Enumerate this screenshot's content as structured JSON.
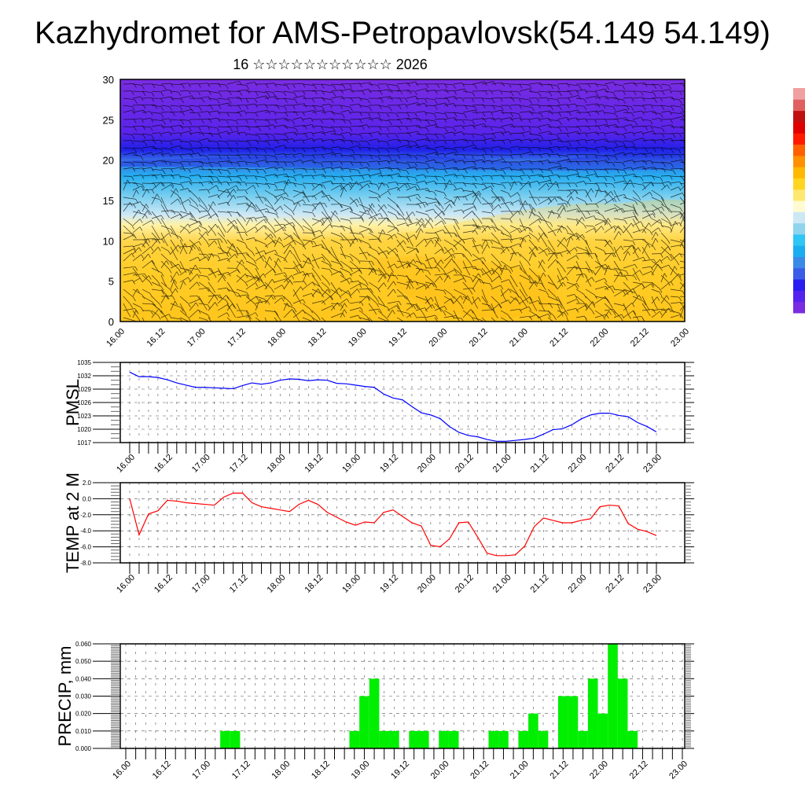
{
  "page": {
    "title": "Kazhydromet for AMS-Petropavlovsk(54.149 54.149)",
    "subtitle": "16 ☆☆☆☆☆☆☆☆☆☆☆ 2026"
  },
  "colors": {
    "pmsl_line": "#0000ff",
    "temp_line": "#ff0000",
    "precip_bar": "#00ee00",
    "colorbar": [
      "#7b2ce0",
      "#5522ee",
      "#2a1df0",
      "#3a5ee8",
      "#3a8ae8",
      "#1aaef0",
      "#2ec6f5",
      "#8fd4ee",
      "#cde8f5",
      "#fffbd0",
      "#ffe870",
      "#ffd520",
      "#ffb800",
      "#ff9000",
      "#ff6000",
      "#ff1a00",
      "#e00000",
      "#c01010",
      "#e06060",
      "#f0a0a0"
    ]
  },
  "chart_data": [
    {
      "type": "heatmap",
      "name": "cross-section",
      "xlabel": "",
      "ylabel": "",
      "ylim": [
        0,
        30
      ],
      "yticks": [
        "0",
        "5",
        "10",
        "15",
        "20",
        "25",
        "30"
      ],
      "xticks": [
        "16.00",
        "16.12",
        "17.00",
        "17.12",
        "18.00",
        "18.12",
        "19.00",
        "19.12",
        "20.00",
        "20.12",
        "21.00",
        "21.12",
        "22.00",
        "22.12",
        "23.00"
      ],
      "description_overlay": "wind barbs"
    },
    {
      "type": "line",
      "name": "pmsl",
      "ylabel": "PMSL",
      "ylim": [
        1017,
        1035
      ],
      "yticks": [
        "1035",
        "1032",
        "1029",
        "1026",
        "1023",
        "1020",
        "1017"
      ],
      "xticks": [
        "16.00",
        "16.12",
        "17.00",
        "17.12",
        "18.00",
        "18.12",
        "19.00",
        "19.12",
        "20.00",
        "20.12",
        "21.00",
        "21.12",
        "22.00",
        "22.12",
        "23.00"
      ],
      "x_step_hours": 3,
      "values": [
        1032.8,
        1031.8,
        1031.8,
        1031.6,
        1031.1,
        1030.4,
        1029.9,
        1029.4,
        1029.4,
        1029.3,
        1029.2,
        1029.1,
        1029.8,
        1030.4,
        1030.1,
        1030.4,
        1031.0,
        1031.3,
        1031.2,
        1030.9,
        1031.1,
        1031.0,
        1030.3,
        1030.2,
        1029.9,
        1029.6,
        1029.4,
        1027.9,
        1027.0,
        1026.6,
        1025.1,
        1023.7,
        1023.2,
        1022.4,
        1020.6,
        1019.3,
        1018.6,
        1018.3,
        1017.7,
        1017.3,
        1017.3,
        1017.5,
        1017.7,
        1018.0,
        1018.9,
        1019.9,
        1020.1,
        1021.0,
        1022.3,
        1023.2,
        1023.6,
        1023.6,
        1023.1,
        1022.8,
        1021.5,
        1020.6,
        1019.4
      ]
    },
    {
      "type": "line",
      "name": "temp",
      "ylabel": "TEMP at 2 M",
      "ylim": [
        -8,
        2
      ],
      "yticks": [
        "2.0",
        "0.0",
        "-2.0",
        "-4.0",
        "-6.0",
        "-8.0"
      ],
      "xticks": [
        "16.00",
        "16.12",
        "17.00",
        "17.12",
        "18.00",
        "18.12",
        "19.00",
        "19.12",
        "20.00",
        "20.12",
        "21.00",
        "21.12",
        "22.00",
        "22.12",
        "23.00"
      ],
      "x_step_hours": 3,
      "values": [
        0.0,
        -4.5,
        -1.9,
        -1.5,
        -0.2,
        -0.3,
        -0.5,
        -0.6,
        -0.7,
        -0.8,
        0.2,
        0.7,
        0.7,
        -0.5,
        -1.0,
        -1.2,
        -1.4,
        -1.6,
        -0.7,
        -0.2,
        -0.7,
        -1.7,
        -2.3,
        -2.9,
        -3.3,
        -2.9,
        -3.0,
        -1.7,
        -1.4,
        -2.2,
        -3.0,
        -3.4,
        -5.8,
        -6.0,
        -5.0,
        -3.0,
        -2.9,
        -4.8,
        -6.8,
        -7.1,
        -7.1,
        -7.0,
        -5.9,
        -3.5,
        -2.4,
        -2.7,
        -3.0,
        -3.0,
        -2.7,
        -2.5,
        -1.0,
        -0.8,
        -0.9,
        -3.1,
        -3.8,
        -4.1,
        -4.6
      ]
    },
    {
      "type": "bar",
      "name": "precip",
      "ylabel": "PRECIP, mm",
      "ylim": [
        0,
        0.06
      ],
      "yticks": [
        "0.060",
        "0.050",
        "0.040",
        "0.030",
        "0.020",
        "0.010",
        "0.000"
      ],
      "xticks": [
        "16.00",
        "16.12",
        "17.00",
        "17.12",
        "18.00",
        "18.12",
        "19.00",
        "19.12",
        "20.00",
        "20.12",
        "21.00",
        "21.12",
        "22.00",
        "22.12",
        "23.00"
      ],
      "x_step_hours": 3,
      "values": [
        0,
        0,
        0,
        0,
        0,
        0,
        0,
        0,
        0,
        0,
        0.01,
        0.01,
        0,
        0,
        0,
        0,
        0,
        0,
        0,
        0,
        0,
        0,
        0,
        0.01,
        0.03,
        0.04,
        0.01,
        0.01,
        0,
        0.01,
        0.01,
        0,
        0.01,
        0.01,
        0,
        0,
        0,
        0.01,
        0.01,
        0,
        0.01,
        0.02,
        0.01,
        0,
        0.03,
        0.03,
        0.01,
        0.04,
        0.02,
        0.06,
        0.04,
        0.01,
        0,
        0,
        0,
        0,
        0
      ]
    }
  ]
}
